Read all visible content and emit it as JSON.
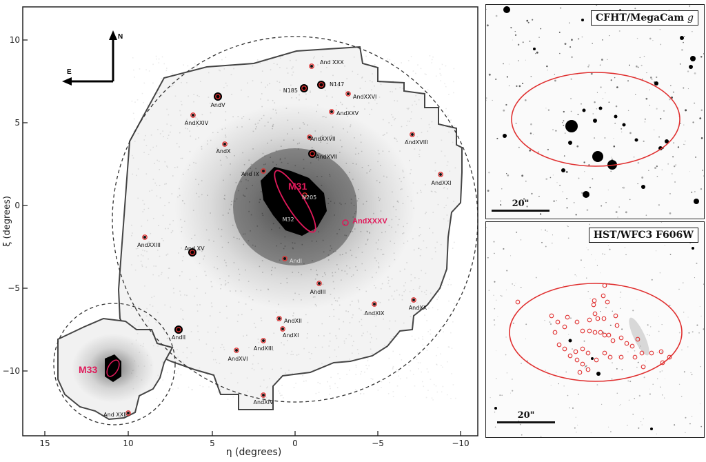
{
  "main_panel": {
    "x_axis_label": "η (degrees)",
    "y_axis_label": "ξ (degrees)",
    "x_ticks": [
      "15",
      "10",
      "5",
      "0",
      "−5",
      "−10"
    ],
    "y_ticks": [
      "10",
      "5",
      "0",
      "−5",
      "−10"
    ],
    "compass": {
      "north": "N",
      "east": "E"
    },
    "primary_labels": {
      "m31": "M31",
      "m33": "M33",
      "andxxxv": "AndXXXV"
    },
    "galaxy_labels": [
      "And XXX",
      "N185",
      "N147",
      "AndXXVI",
      "AndV",
      "AndXXV",
      "AndXXIV",
      "AndXXVII",
      "AndXVIII",
      "AndX",
      "AndXVII",
      "And IX",
      "N205",
      "AndXXI",
      "M32",
      "AndXXIII",
      "And XV",
      "AndI",
      "AndIII",
      "AndXIX",
      "AndXX",
      "AndXII",
      "AndII",
      "AndXI",
      "AndXIII",
      "AndXVI",
      "AndXIV",
      "And XXII"
    ],
    "colors": {
      "highlight": "#e0195a",
      "marker": "#e03030",
      "footprint": "#444444",
      "circle": "#333333"
    }
  },
  "insets": {
    "top": {
      "label_name": "CFHT/MegaCam ",
      "label_band": "g",
      "scale_label": "20\""
    },
    "bottom": {
      "label": "HST/WFC3 F606W",
      "scale_label": "20\""
    },
    "ellipse_color": "#e03030"
  }
}
